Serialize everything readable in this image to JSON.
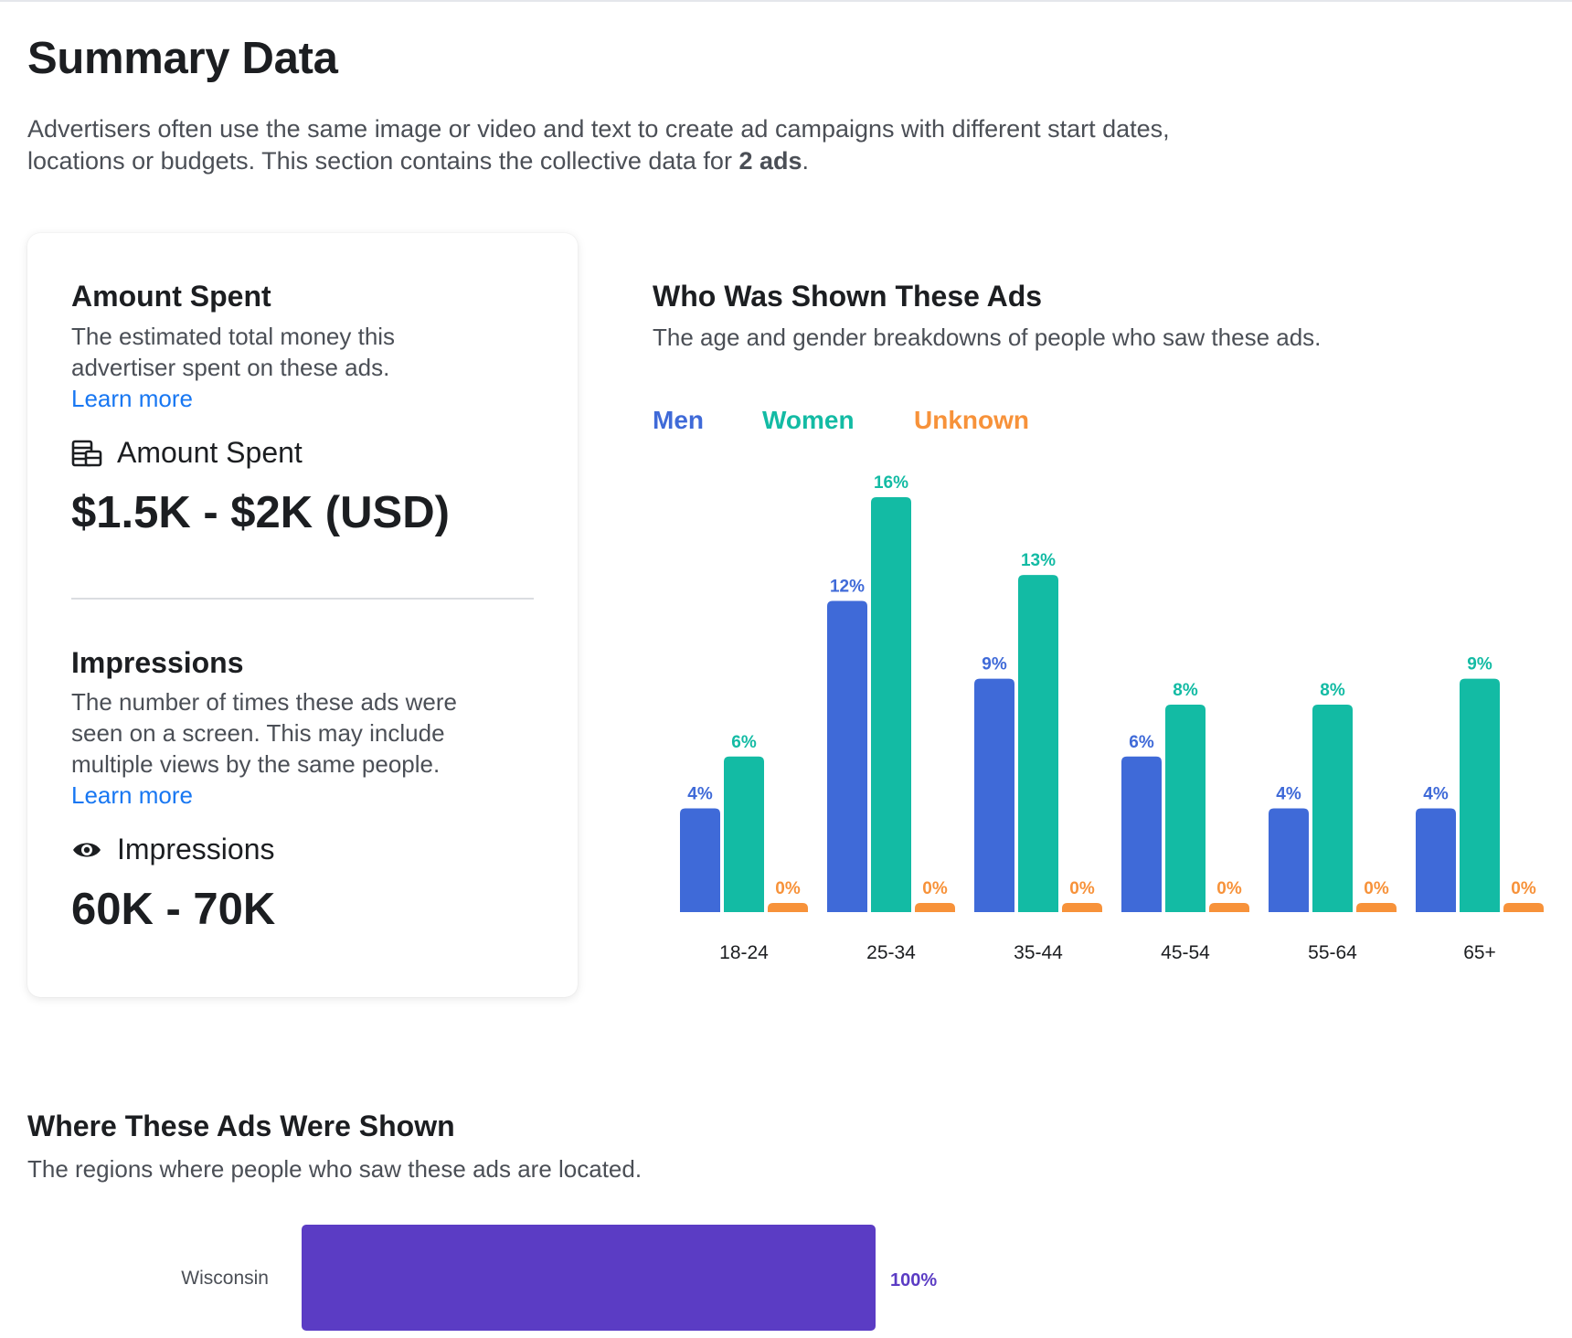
{
  "header": {
    "title": "Summary Data",
    "intro_text": "Advertisers often use the same image or video and text to create ad campaigns with different start dates, locations or budgets. This section contains the collective data for ",
    "intro_bold": "2 ads",
    "intro_end": "."
  },
  "amount_spent": {
    "heading": "Amount Spent",
    "description": "The estimated total money this advertiser spent on these ads.",
    "learn_more": "Learn more",
    "icon": "money-stack-icon",
    "label": "Amount Spent",
    "value": "$1.5K - $2K (USD)"
  },
  "impressions": {
    "heading": "Impressions",
    "description": "The number of times these ads were seen on a screen. This may include multiple views by the same people.",
    "learn_more": "Learn more",
    "icon": "eye-icon",
    "label": "Impressions",
    "value": "60K - 70K"
  },
  "audience": {
    "title": "Who Was Shown These Ads",
    "subtitle": "The age and gender breakdowns of people who saw these ads."
  },
  "where": {
    "title": "Where These Ads Were Shown",
    "subtitle": "The regions where people who saw these ads are located."
  },
  "chart_data": [
    {
      "type": "bar",
      "categories": [
        "18-24",
        "25-34",
        "35-44",
        "45-54",
        "55-64",
        "65+"
      ],
      "series": [
        {
          "name": "Men",
          "color": "#3f6ad8",
          "values": [
            4,
            12,
            9,
            6,
            4,
            4
          ],
          "labels": [
            "4%",
            "12%",
            "9%",
            "6%",
            "4%",
            "4%"
          ]
        },
        {
          "name": "Women",
          "color": "#13bba4",
          "values": [
            6,
            16,
            13,
            8,
            8,
            9
          ],
          "labels": [
            "6%",
            "16%",
            "13%",
            "8%",
            "8%",
            "9%"
          ]
        },
        {
          "name": "Unknown",
          "color": "#f7923a",
          "values": [
            0,
            0,
            0,
            0,
            0,
            0
          ],
          "labels": [
            "0%",
            "0%",
            "0%",
            "0%",
            "0%",
            "0%"
          ]
        }
      ],
      "ylim": [
        0,
        16
      ],
      "legend": "top-left",
      "grid": false
    },
    {
      "type": "bar",
      "orientation": "horizontal",
      "categories": [
        "Wisconsin"
      ],
      "values": [
        100
      ],
      "labels": [
        "100%"
      ],
      "color": "#5b3cc4",
      "xlim": [
        0,
        100
      ]
    }
  ]
}
